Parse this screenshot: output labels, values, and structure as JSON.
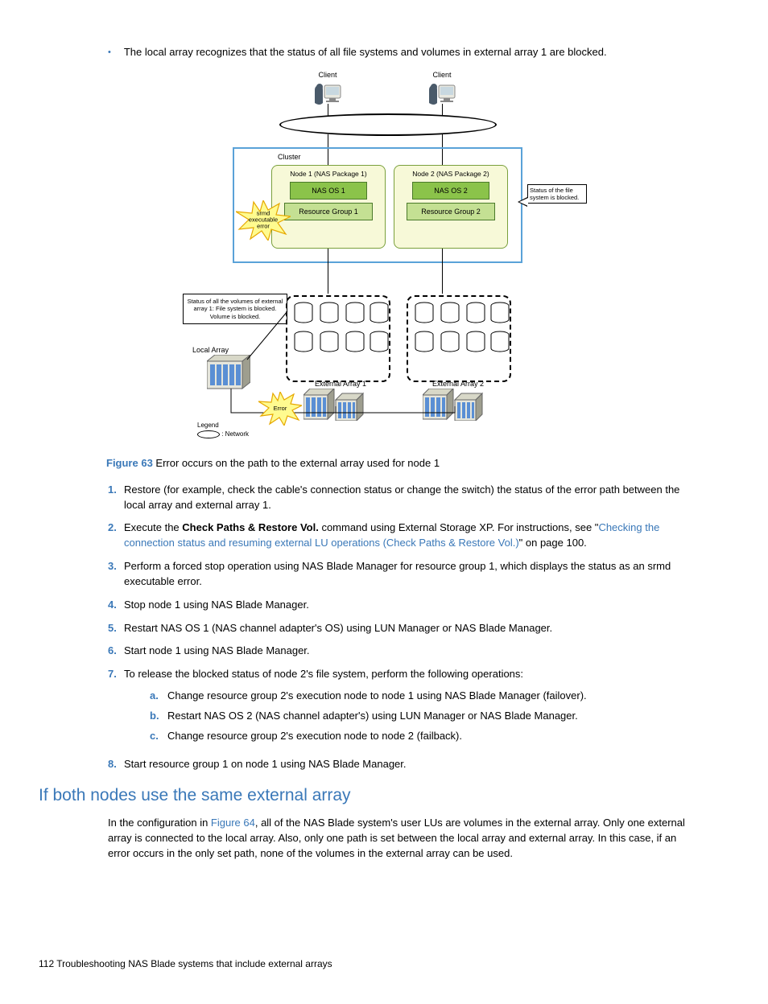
{
  "bullet_intro": "The local array recognizes that the status of all file systems and volumes in external array 1 are blocked.",
  "diagram": {
    "client_label": "Client",
    "cluster_label": "Cluster",
    "node1_label": "Node 1 (NAS Package 1)",
    "node2_label": "Node 2 (NAS Package 2)",
    "nas_os1": "NAS OS 1",
    "nas_os2": "NAS OS 2",
    "rg1": "Resource Group 1",
    "rg2": "Resource Group 2",
    "status_callout": "Status of the file system is blocked.",
    "srmd_burst": "srmd executable error",
    "error_burst": "Error",
    "status_all": "Status of all the volumes of external array 1: File system is blocked. Volume is blocked.",
    "local_array_label": "Local Array",
    "ext1_label": "External Array 1",
    "ext2_label": "External Array 2",
    "legend_title": "Legend",
    "legend_net": ": Network",
    "colors": {
      "outer_border": "#5aa2d8",
      "node_fill": "#f7f9d8",
      "node_border": "#7aa03c",
      "nasos_fill": "#8bc34a",
      "rg_fill": "#c4e093",
      "starburst_fill": "#fffb8f",
      "starburst_stroke": "#e6a800",
      "rack_top": "#d8d8c8",
      "rack_side": "#9e9e8f",
      "disk_fill": "#5a8fd4"
    }
  },
  "figure_caption_num": "Figure 63",
  "figure_caption_txt": "  Error occurs on the path to the external array used for node 1",
  "steps": [
    {
      "n": "1.",
      "t": "Restore (for example, check the cable's connection status or change the switch) the status of the error path between the local array and external array 1."
    },
    {
      "n": "2.",
      "pre": "Execute the ",
      "bold": "Check Paths & Restore Vol.",
      "mid": " command using External Storage XP. For instructions, see \"",
      "link": "Checking the connection status and resuming external LU operations (Check Paths & Restore Vol.)",
      "post": "\" on page 100."
    },
    {
      "n": "3.",
      "t": "Perform a forced stop operation using NAS Blade Manager for resource group 1, which displays the status as an srmd executable error."
    },
    {
      "n": "4.",
      "t": "Stop node 1 using NAS Blade Manager."
    },
    {
      "n": "5.",
      "t": "Restart NAS OS 1 (NAS channel adapter's OS) using LUN Manager or NAS Blade Manager."
    },
    {
      "n": "6.",
      "t": "Start node 1 using NAS Blade Manager."
    },
    {
      "n": "7.",
      "t": "To release the blocked status of node 2's file system, perform the following operations:",
      "sub": [
        {
          "sn": "a.",
          "st": "Change resource group 2's execution node to node 1 using NAS Blade Manager (failover)."
        },
        {
          "sn": "b.",
          "st": "Restart NAS OS 2 (NAS channel adapter's) using LUN Manager or NAS Blade Manager."
        },
        {
          "sn": "c.",
          "st": "Change resource group 2's execution node to node 2 (failback)."
        }
      ]
    },
    {
      "n": "8.",
      "t": "Start resource group 1 on node 1 using NAS Blade Manager."
    }
  ],
  "section_heading": "If both nodes use the same external array",
  "section_para_pre": "In the configuration in ",
  "section_para_link": "Figure 64",
  "section_para_post": ", all of the NAS Blade system's user LUs are volumes in the external array. Only one external array is connected to the local array. Also, only one path is set between the local array and external array. In this case, if an error occurs in the only set path, none of the volumes in the external array can be used.",
  "footer": "112   Troubleshooting NAS Blade systems that include external arrays"
}
